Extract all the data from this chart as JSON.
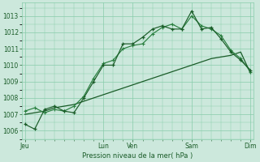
{
  "title": "Pression niveau de la mer( hPa )",
  "bg_color": "#cce8dc",
  "grid_color": "#88ccaa",
  "line_color1": "#1a5c28",
  "line_color2": "#2a8040",
  "ylim": [
    1005.5,
    1013.8
  ],
  "yticks": [
    1006,
    1007,
    1008,
    1009,
    1010,
    1011,
    1012,
    1013
  ],
  "day_labels": [
    "Jeu",
    "Lun",
    "Ven",
    "Sam",
    "Dim"
  ],
  "day_positions": [
    0,
    8,
    11,
    17,
    23
  ],
  "n_points": 24,
  "series1_x": [
    0,
    1,
    2,
    3,
    4,
    5,
    6,
    7,
    8,
    9,
    10,
    11,
    12,
    13,
    14,
    15,
    16,
    17,
    18,
    19,
    20,
    21,
    22,
    23
  ],
  "series1_y": [
    1006.4,
    1006.1,
    1007.3,
    1007.5,
    1007.2,
    1007.1,
    1008.0,
    1009.0,
    1010.0,
    1010.0,
    1011.3,
    1011.3,
    1011.7,
    1012.2,
    1012.4,
    1012.2,
    1012.2,
    1013.3,
    1012.2,
    1012.3,
    1011.6,
    1010.8,
    1010.3,
    1009.7
  ],
  "series2_x": [
    0,
    1,
    2,
    3,
    4,
    5,
    6,
    7,
    8,
    9,
    10,
    11,
    12,
    13,
    14,
    15,
    16,
    17,
    18,
    19,
    20,
    21,
    22,
    23
  ],
  "series2_y": [
    1007.2,
    1007.4,
    1007.1,
    1007.3,
    1007.2,
    1007.5,
    1008.1,
    1009.2,
    1010.1,
    1010.3,
    1011.0,
    1011.2,
    1011.3,
    1011.9,
    1012.3,
    1012.5,
    1012.2,
    1013.0,
    1012.4,
    1012.2,
    1011.8,
    1010.9,
    1010.4,
    1009.6
  ],
  "series3_x": [
    0,
    1,
    2,
    3,
    4,
    5,
    6,
    7,
    8,
    9,
    10,
    11,
    12,
    13,
    14,
    15,
    16,
    17,
    18,
    19,
    20,
    21,
    22,
    23
  ],
  "series3_y": [
    1007.0,
    1007.1,
    1007.2,
    1007.4,
    1007.5,
    1007.6,
    1007.8,
    1008.0,
    1008.2,
    1008.4,
    1008.6,
    1008.8,
    1009.0,
    1009.2,
    1009.4,
    1009.6,
    1009.8,
    1010.0,
    1010.2,
    1010.4,
    1010.5,
    1010.6,
    1010.8,
    1009.5
  ],
  "xlabel_fontsize": 6.0,
  "ytick_fontsize": 5.5,
  "xtick_fontsize": 5.5
}
